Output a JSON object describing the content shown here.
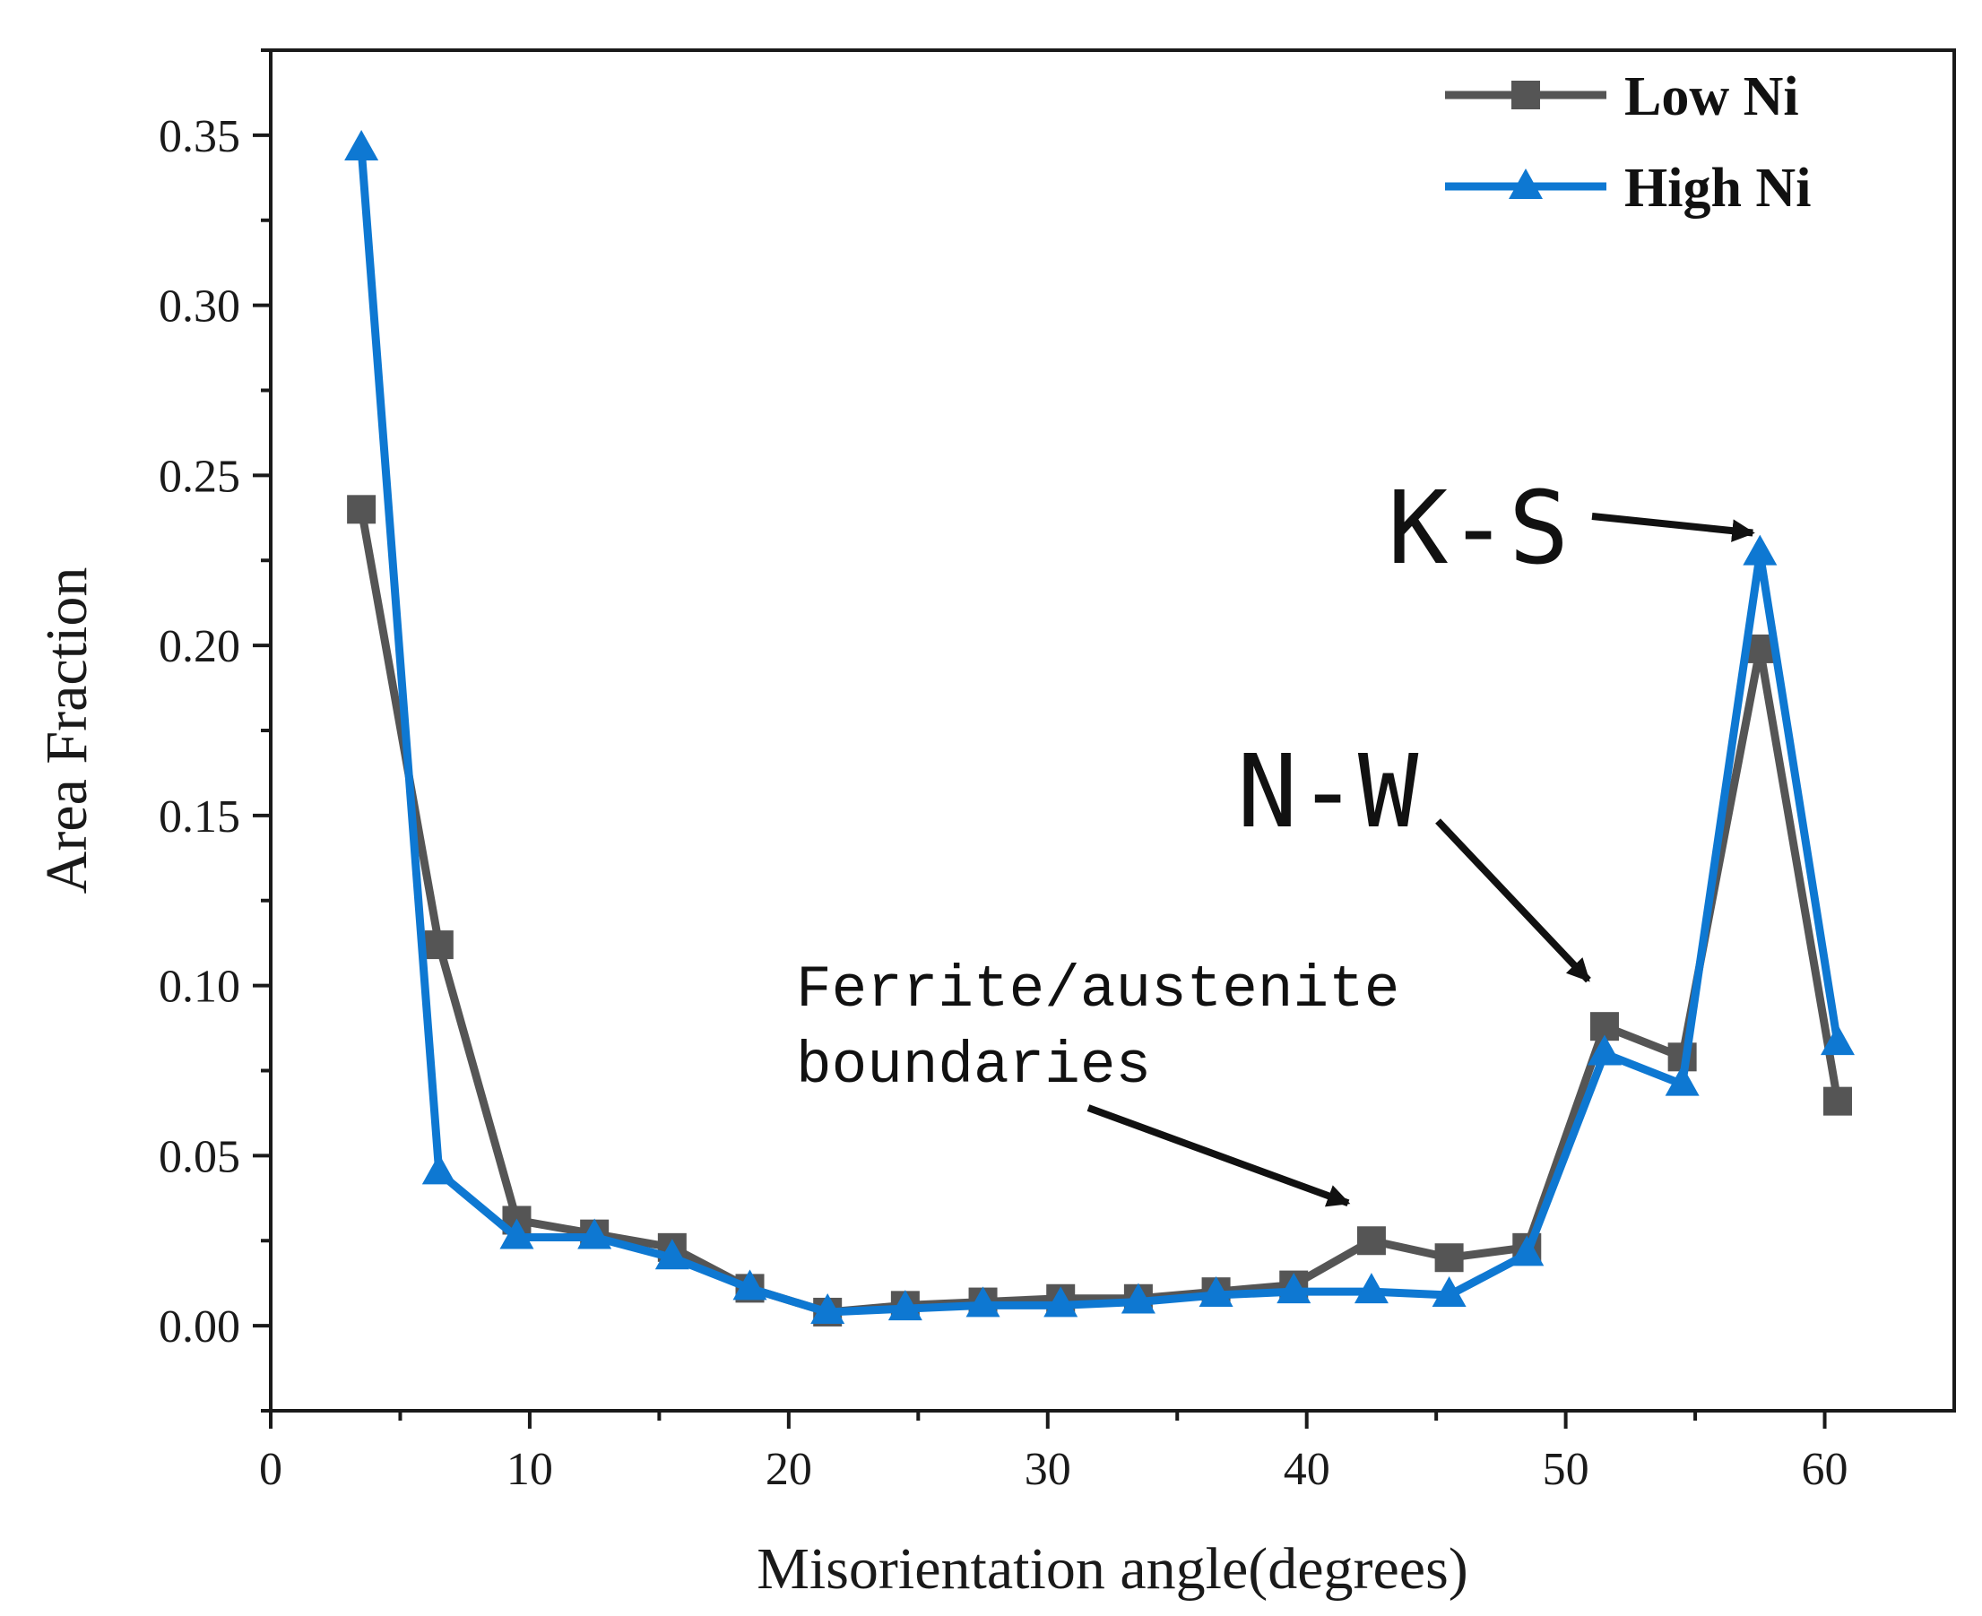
{
  "chart_data": {
    "type": "line",
    "title": "",
    "xlabel": "Misorientation angle(degrees)",
    "ylabel": "Area Fraction",
    "xlim": [
      0,
      65
    ],
    "ylim": [
      -0.025,
      0.375
    ],
    "xticks": [
      0,
      10,
      20,
      30,
      40,
      50,
      60
    ],
    "yticks": [
      0.0,
      0.05,
      0.1,
      0.15,
      0.2,
      0.25,
      0.3,
      0.35
    ],
    "xtick_labels": [
      "0",
      "10",
      "20",
      "30",
      "40",
      "50",
      "60"
    ],
    "ytick_labels": [
      "0.00",
      "0.05",
      "0.10",
      "0.15",
      "0.20",
      "0.25",
      "0.30",
      "0.35"
    ],
    "grid": false,
    "legend_position": "top-right",
    "series": [
      {
        "name": "Low Ni",
        "color": "#555555",
        "marker": "square",
        "x": [
          3.5,
          6.5,
          9.5,
          12.5,
          15.5,
          18.5,
          21.5,
          24.5,
          27.5,
          30.5,
          33.5,
          36.5,
          39.5,
          42.5,
          45.5,
          48.5,
          51.5,
          54.5,
          57.5,
          60.5
        ],
        "y": [
          0.24,
          0.112,
          0.031,
          0.027,
          0.023,
          0.011,
          0.004,
          0.006,
          0.007,
          0.008,
          0.008,
          0.01,
          0.012,
          0.025,
          0.02,
          0.023,
          0.088,
          0.079,
          0.199,
          0.066
        ]
      },
      {
        "name": "High Ni",
        "color": "#0e78d2",
        "marker": "triangle",
        "x": [
          3.5,
          6.5,
          9.5,
          12.5,
          15.5,
          18.5,
          21.5,
          24.5,
          27.5,
          30.5,
          33.5,
          36.5,
          39.5,
          42.5,
          45.5,
          48.5,
          51.5,
          54.5,
          57.5,
          60.5
        ],
        "y": [
          0.346,
          0.045,
          0.026,
          0.026,
          0.02,
          0.011,
          0.004,
          0.005,
          0.006,
          0.006,
          0.007,
          0.009,
          0.01,
          0.01,
          0.009,
          0.021,
          0.08,
          0.071,
          0.227,
          0.083
        ]
      }
    ],
    "annotations": [
      {
        "lines": [
          "Ferrite/austenite",
          "boundaries"
        ],
        "target_x": 42.5,
        "target_y": 0.035
      },
      {
        "lines": [
          "N-W"
        ],
        "target_x": 51.5,
        "target_y": 0.1
      },
      {
        "lines": [
          "K-S"
        ],
        "target_x": 57.5,
        "target_y": 0.231
      }
    ]
  }
}
